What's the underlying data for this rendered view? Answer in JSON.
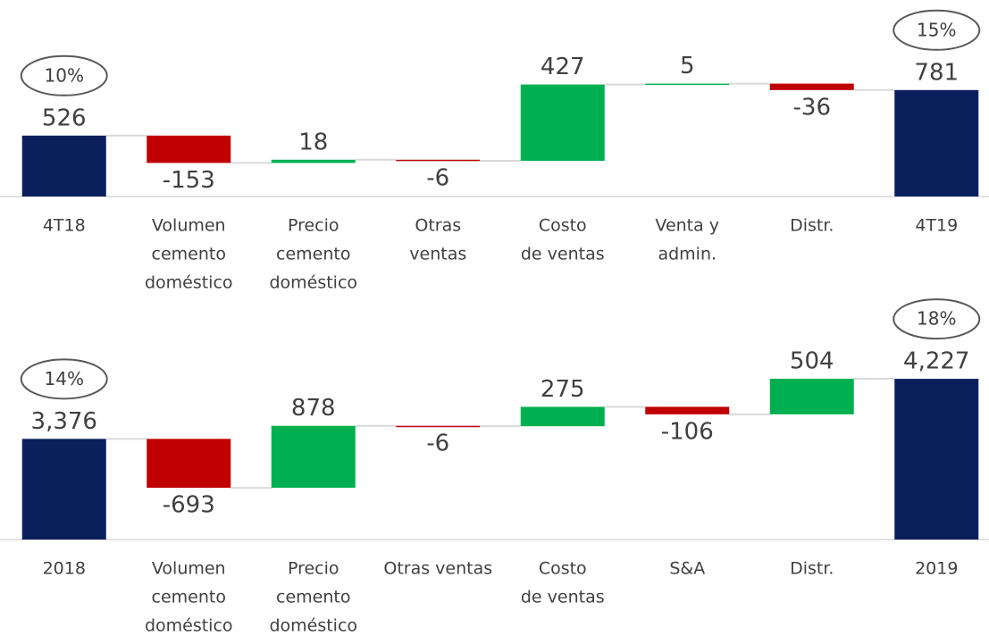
{
  "chart_data": [
    {
      "type": "waterfall",
      "categories": [
        [
          "4T18"
        ],
        [
          "Volumen",
          "cemento",
          "doméstico"
        ],
        [
          "Precio",
          "cemento",
          "doméstico"
        ],
        [
          "Otras",
          "ventas"
        ],
        [
          "Costo",
          "de ventas"
        ],
        [
          "Venta y",
          "admin."
        ],
        [
          "Distr."
        ],
        [
          "4T19"
        ]
      ],
      "values": [
        526,
        -153,
        18,
        -6,
        427,
        5,
        -36,
        781
      ],
      "measures": [
        "absolute",
        "relative",
        "relative",
        "relative",
        "relative",
        "relative",
        "relative",
        "total"
      ],
      "colors": {
        "total": "#0b1f5c",
        "increase": "#00b050",
        "decrease": "#c00000"
      },
      "margin_labels": [
        "10%",
        "15%"
      ],
      "ylim": [
        185,
        1000
      ]
    },
    {
      "type": "waterfall",
      "categories": [
        [
          "2018"
        ],
        [
          "Volumen",
          "cemento",
          "doméstico"
        ],
        [
          "Precio",
          "cemento",
          "doméstico"
        ],
        [
          "Otras ventas"
        ],
        [
          "Costo",
          "de ventas"
        ],
        [
          "S&A"
        ],
        [
          "Distr."
        ],
        [
          "2019"
        ]
      ],
      "values": [
        3376,
        -693,
        878,
        -6,
        275,
        -106,
        504,
        4227
      ],
      "value_labels": [
        "3,376",
        "-693",
        "878",
        "-6",
        "275",
        "-106",
        "504",
        "4,227"
      ],
      "measures": [
        "absolute",
        "relative",
        "relative",
        "relative",
        "relative",
        "relative",
        "relative",
        "total"
      ],
      "colors": {
        "total": "#0b1f5c",
        "increase": "#00b050",
        "decrease": "#c00000"
      },
      "margin_labels": [
        "14%",
        "18%"
      ],
      "ylim": [
        1950,
        5000
      ]
    }
  ]
}
